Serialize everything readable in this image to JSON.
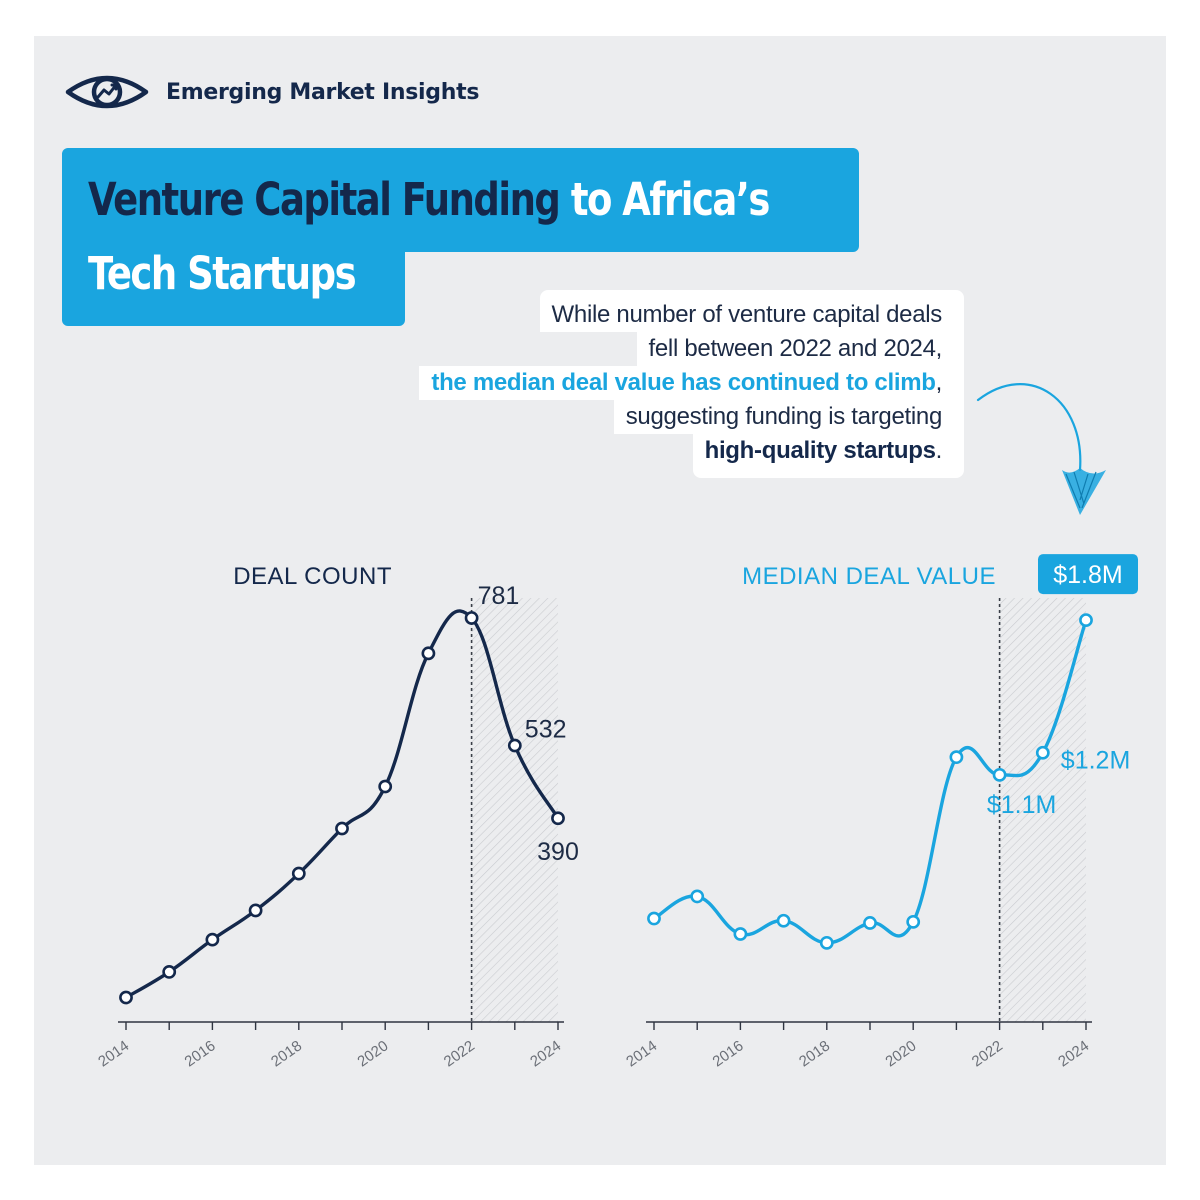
{
  "brand": {
    "name": "Emerging Market Insights",
    "icon": "eye-trend-icon"
  },
  "title": {
    "part1": "Venture Capital Funding",
    "part2": "to Africa’s",
    "line2": "Tech Startups"
  },
  "note": {
    "line1": "While number of venture capital deals",
    "line2": "fell between 2022 and 2024,",
    "line3_accent": "the median deal value has continued to climb",
    "line3_end": ",",
    "line4": "suggesting funding is targeting",
    "line5_bold": "high-quality startups",
    "line5_end": "."
  },
  "colors": {
    "navy": "#14284b",
    "accent": "#1aa5df",
    "panel": "#ecedef"
  },
  "chart_data": [
    {
      "type": "line",
      "title": "DEAL COUNT",
      "x": [
        2014,
        2015,
        2016,
        2017,
        2018,
        2019,
        2020,
        2021,
        2022,
        2023,
        2024
      ],
      "tick_labels": [
        "2014",
        "2016",
        "2018",
        "2020",
        "2022",
        "2024"
      ],
      "values": [
        40,
        90,
        153,
        210,
        282,
        370,
        452,
        712,
        781,
        532,
        390
      ],
      "ylim": [
        0,
        820
      ],
      "highlight_from": 2022,
      "annotations": [
        {
          "x": 2022,
          "text": "781"
        },
        {
          "x": 2023,
          "text": "532"
        },
        {
          "x": 2024,
          "text": "390"
        }
      ],
      "color": "#14284b"
    },
    {
      "type": "line",
      "title": "MEDIAN DEAL VALUE",
      "x": [
        2014,
        2015,
        2016,
        2017,
        2018,
        2019,
        2020,
        2021,
        2022,
        2023,
        2024
      ],
      "tick_labels": [
        "2014",
        "2016",
        "2018",
        "2020",
        "2022",
        "2024"
      ],
      "values": [
        0.45,
        0.55,
        0.38,
        0.44,
        0.34,
        0.43,
        0.435,
        1.18,
        1.1,
        1.2,
        1.8
      ],
      "ylim": [
        0,
        1.9
      ],
      "highlight_from": 2022,
      "annotations": [
        {
          "x": 2022,
          "text": "$1.1M"
        },
        {
          "x": 2023,
          "text": "$1.2M"
        },
        {
          "x": 2024,
          "text": "$1.8M"
        }
      ],
      "color": "#1aa5df"
    }
  ]
}
